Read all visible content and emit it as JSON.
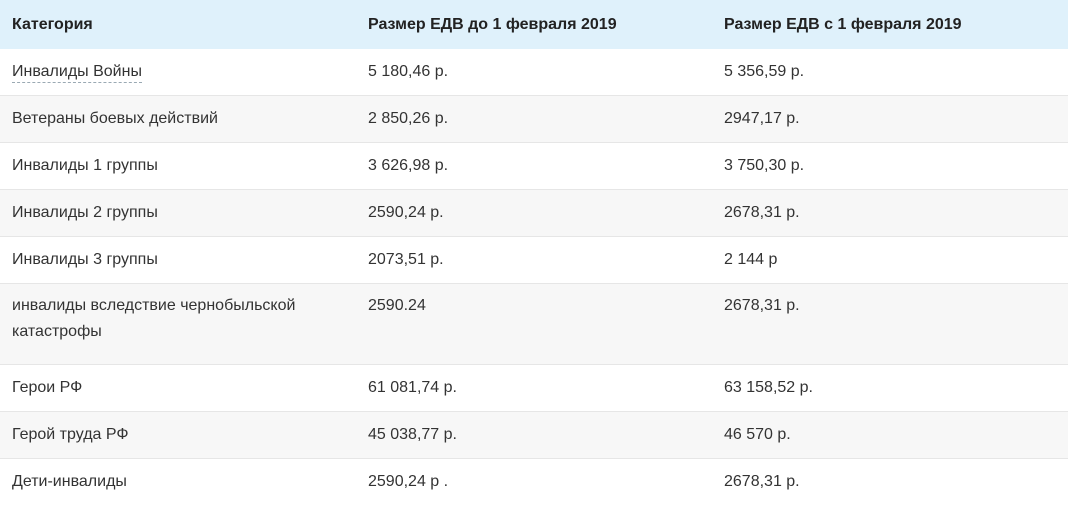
{
  "table": {
    "headers": [
      "Категория",
      "Размер ЕДВ до 1 февраля 2019",
      "Размер ЕДВ с 1 февраля 2019"
    ],
    "rows": [
      [
        "Инвалиды Войны",
        "5 180,46 р.",
        "5 356,59 р."
      ],
      [
        "Ветераны боевых действий",
        "2 850,26 р.",
        "2947,17 р."
      ],
      [
        "Инвалиды 1 группы",
        "3 626,98 р.",
        "3 750,30 р."
      ],
      [
        "Инвалиды 2 группы",
        "2590,24 р.",
        "2678,31 р."
      ],
      [
        "Инвалиды 3 группы",
        "2073,51 р.",
        "2 144 р"
      ],
      [
        "инвалиды вследствие чернобыльской катастрофы",
        "2590.24",
        "2678,31 р."
      ],
      [
        "Герои РФ",
        "61 081,74 р.",
        "63 158,52 р."
      ],
      [
        "Герой труда РФ",
        "45 038,77 р.",
        "46 570 р."
      ],
      [
        "Дети-инвалиды",
        "2590,24 р .",
        "2678,31 р."
      ]
    ]
  },
  "colors": {
    "header_bg": "#dff1fb",
    "stripe_bg": "#f7f7f7",
    "text": "#333333"
  }
}
